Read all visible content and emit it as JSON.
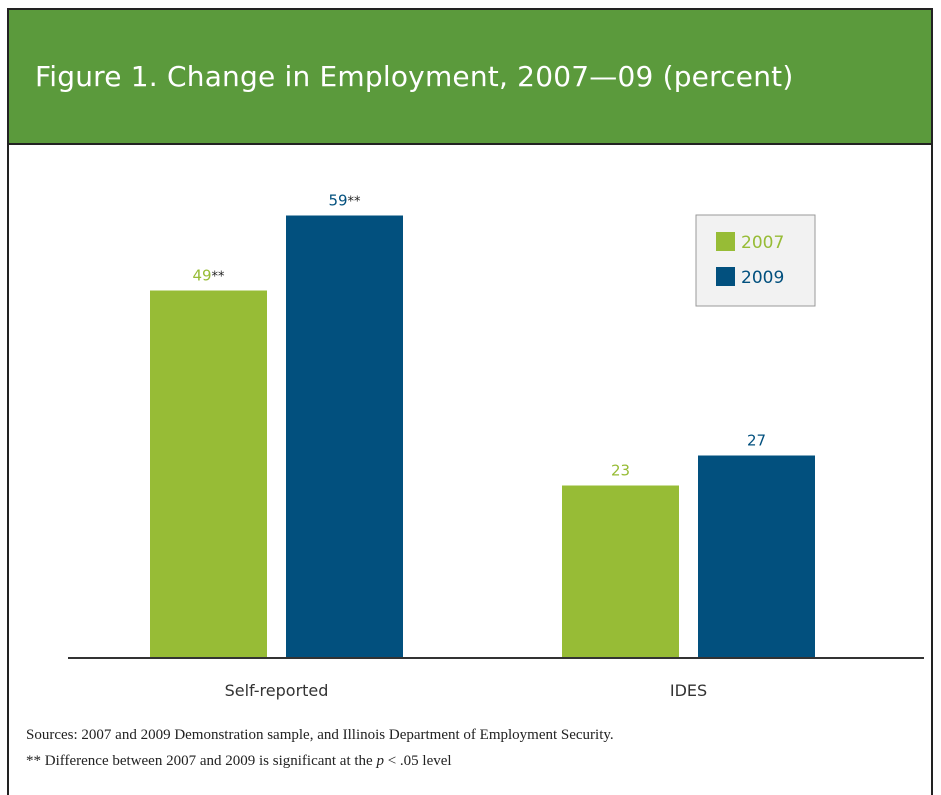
{
  "title": "Figure 1. Change in Employment, 2007—09 (percent)",
  "colors": {
    "header_bg": "#5b9a3c",
    "series_2007": "#97bc36",
    "series_2009": "#02507e",
    "stars": "#222222"
  },
  "chart_data": {
    "type": "bar",
    "categories": [
      "Self-reported",
      "IDES"
    ],
    "series": [
      {
        "name": "2007",
        "values": [
          49,
          23
        ],
        "labels": [
          "49",
          "23"
        ],
        "flags": [
          "**",
          ""
        ]
      },
      {
        "name": "2009",
        "values": [
          59,
          27
        ],
        "labels": [
          "59",
          "27"
        ],
        "flags": [
          "**",
          ""
        ]
      }
    ],
    "ylim": [
      0,
      68
    ],
    "legend_position": "top-right",
    "grid": false
  },
  "footnotes": {
    "sources": "Sources: 2007 and 2009 Demonstration sample, and Illinois Department of Employment Security.",
    "significance_prefix": "** Difference between 2007 and 2009 is significant at the ",
    "significance_p": "p",
    "significance_suffix": " < .05 level"
  }
}
